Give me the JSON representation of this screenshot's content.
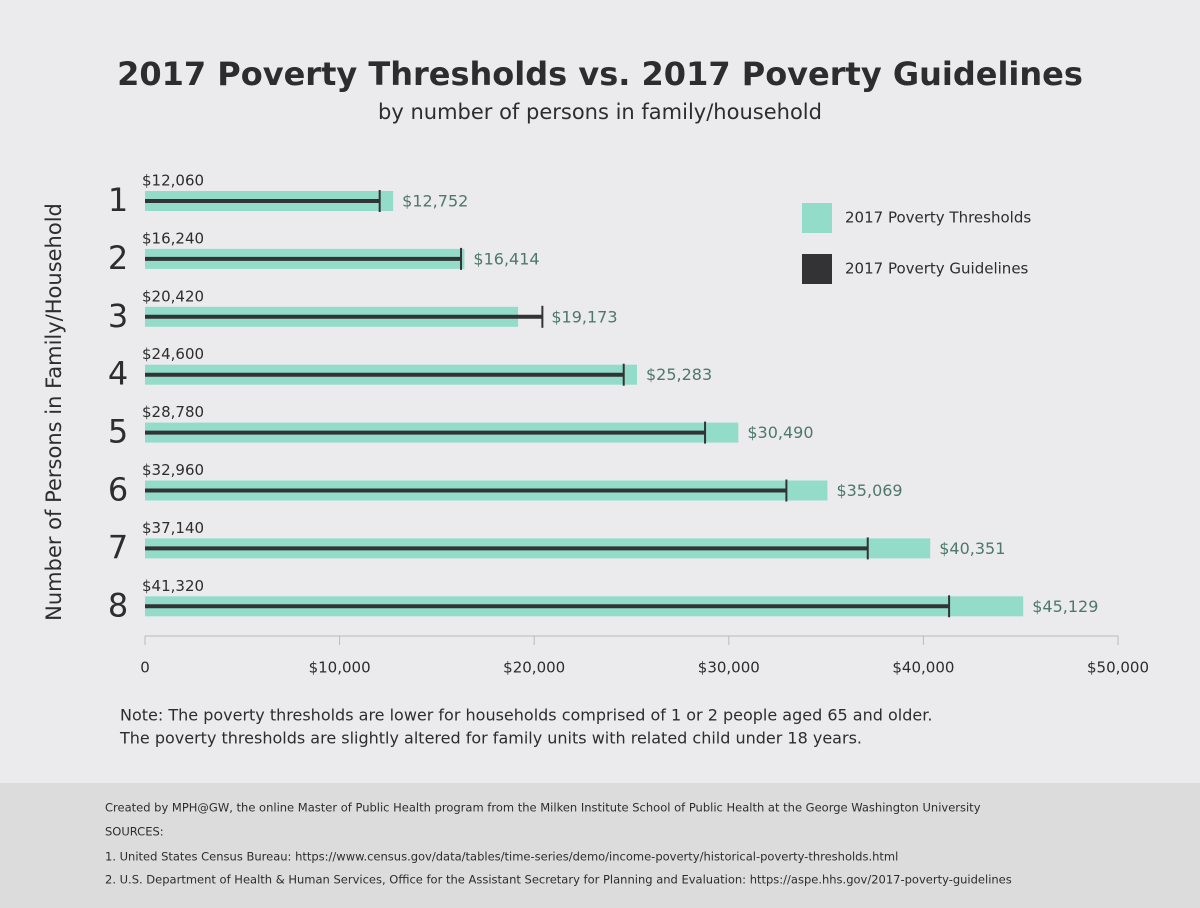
{
  "chart_data": {
    "type": "bar",
    "title": "2017 Poverty Thresholds  vs. 2017 Poverty Guidelines",
    "subtitle": "by number of persons in family/household",
    "y_label": "Number of Persons in Family/Household",
    "categories": [
      "1",
      "2",
      "3",
      "4",
      "5",
      "6",
      "7",
      "8"
    ],
    "series": [
      {
        "name": "2017 Poverty Thresholds",
        "color": "#93dcc9",
        "values": [
          12752,
          16414,
          19173,
          25283,
          30490,
          35069,
          40351,
          45129
        ],
        "value_labels": [
          "$12,752",
          "$16,414",
          "$19,173",
          "$25,283",
          "$30,490",
          "$35,069",
          "$40,351",
          "$45,129"
        ]
      },
      {
        "name": "2017 Poverty Guidelines",
        "color": "#333335",
        "values": [
          12060,
          16240,
          20420,
          24600,
          28780,
          32960,
          37140,
          41320
        ],
        "value_labels": [
          "$12,060",
          "$16,240",
          "$20,420",
          "$24,600",
          "$28,780",
          "$32,960",
          "$37,140",
          "$41,320"
        ]
      }
    ],
    "xlim": [
      0,
      50000
    ],
    "xticks": [
      0,
      {
        "value": 10000,
        "label": "$10,000"
      },
      {
        "value": 20000,
        "label": "$20,000"
      },
      {
        "value": 30000,
        "label": "$30,000"
      },
      {
        "value": 40000,
        "label": "$40,000"
      },
      {
        "value": 50000,
        "label": "$50,000"
      }
    ],
    "legend": "upper right"
  },
  "notes": [
    "Note: The poverty thresholds are lower for households comprised of 1 or 2 people aged 65 and older.",
    "The poverty thresholds are slightly altered for family units with related child under 18 years."
  ],
  "footer": {
    "credit": "Created by MPH@GW, the online Master of Public Health program from the Milken Institute School of Public Health at the George Washington University",
    "sources_label": "SOURCES:",
    "sources": [
      "1.  United States Census Bureau: https://www.census.gov/data/tables/time-series/demo/income-poverty/historical-poverty-thresholds.html",
      "2.  U.S. Department of Health & Human Services, Office for the Assistant Secretary for Planning and Evaluation: https://aspe.hhs.gov/2017-poverty-guidelines"
    ]
  }
}
